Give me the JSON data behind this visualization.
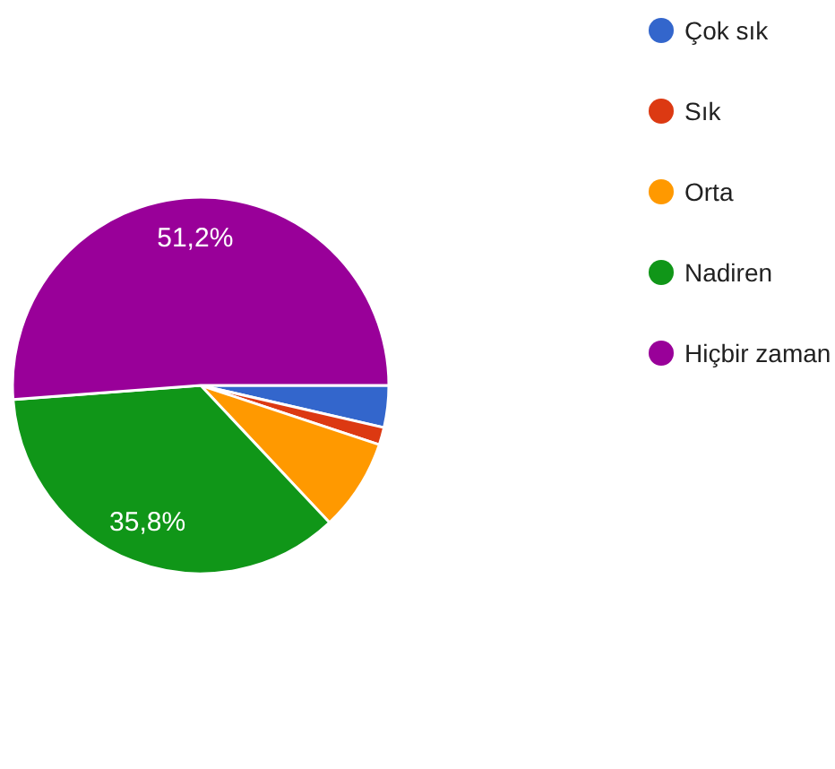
{
  "chart_data": {
    "type": "pie",
    "categories": [
      "Çok sık",
      "Sık",
      "Orta",
      "Nadiren",
      "Hiçbir zaman"
    ],
    "values": [
      3.6,
      1.5,
      7.9,
      35.8,
      51.2
    ],
    "colors": [
      "#3366cc",
      "#dc3912",
      "#ff9900",
      "#109618",
      "#990099"
    ],
    "value_labels": [
      null,
      null,
      null,
      "35,8%",
      "51,2%"
    ],
    "legend": "right"
  }
}
